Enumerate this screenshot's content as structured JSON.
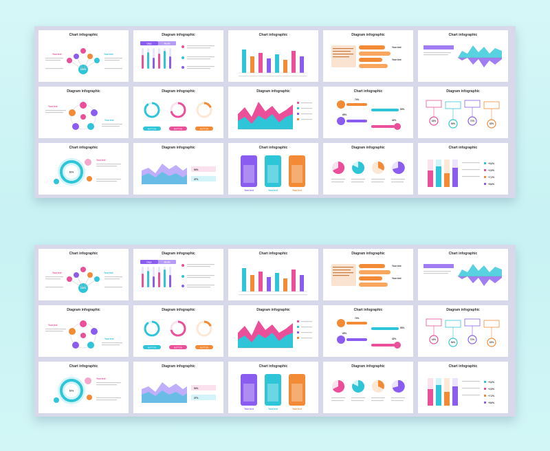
{
  "titles": {
    "chart": "Chart infographic",
    "diagram": "Diagram infographic"
  },
  "labels": {
    "your_text": "Your text",
    "days": "Days",
    "month": "Month",
    "button": "BUTTON",
    "lorem_short": "Lorem ipsum dolor sit amet, consectetur",
    "pct_61": "61%",
    "pct_100": "100%",
    "pct_54": "54%",
    "pct_37": "37%",
    "pct_74": "74%",
    "pct_53": "53%",
    "pct_65": "65%",
    "pct_42": "42%",
    "pct_43": "43%",
    "pct_71": "71%",
    "pct_32": "32%",
    "pct_91": "91%",
    "pct_86": "86%",
    "pct_18": "18%",
    "plus_54": "+5,4%",
    "plus_25": "+2,5%",
    "plus_72": "+7,2%",
    "plus_86": "+8,6%"
  },
  "colors": {
    "cyan": "#2ec5d8",
    "pink": "#ec4f9a",
    "purple": "#8a5cf0",
    "orange": "#f28a36",
    "blue": "#3b8ef0"
  }
}
